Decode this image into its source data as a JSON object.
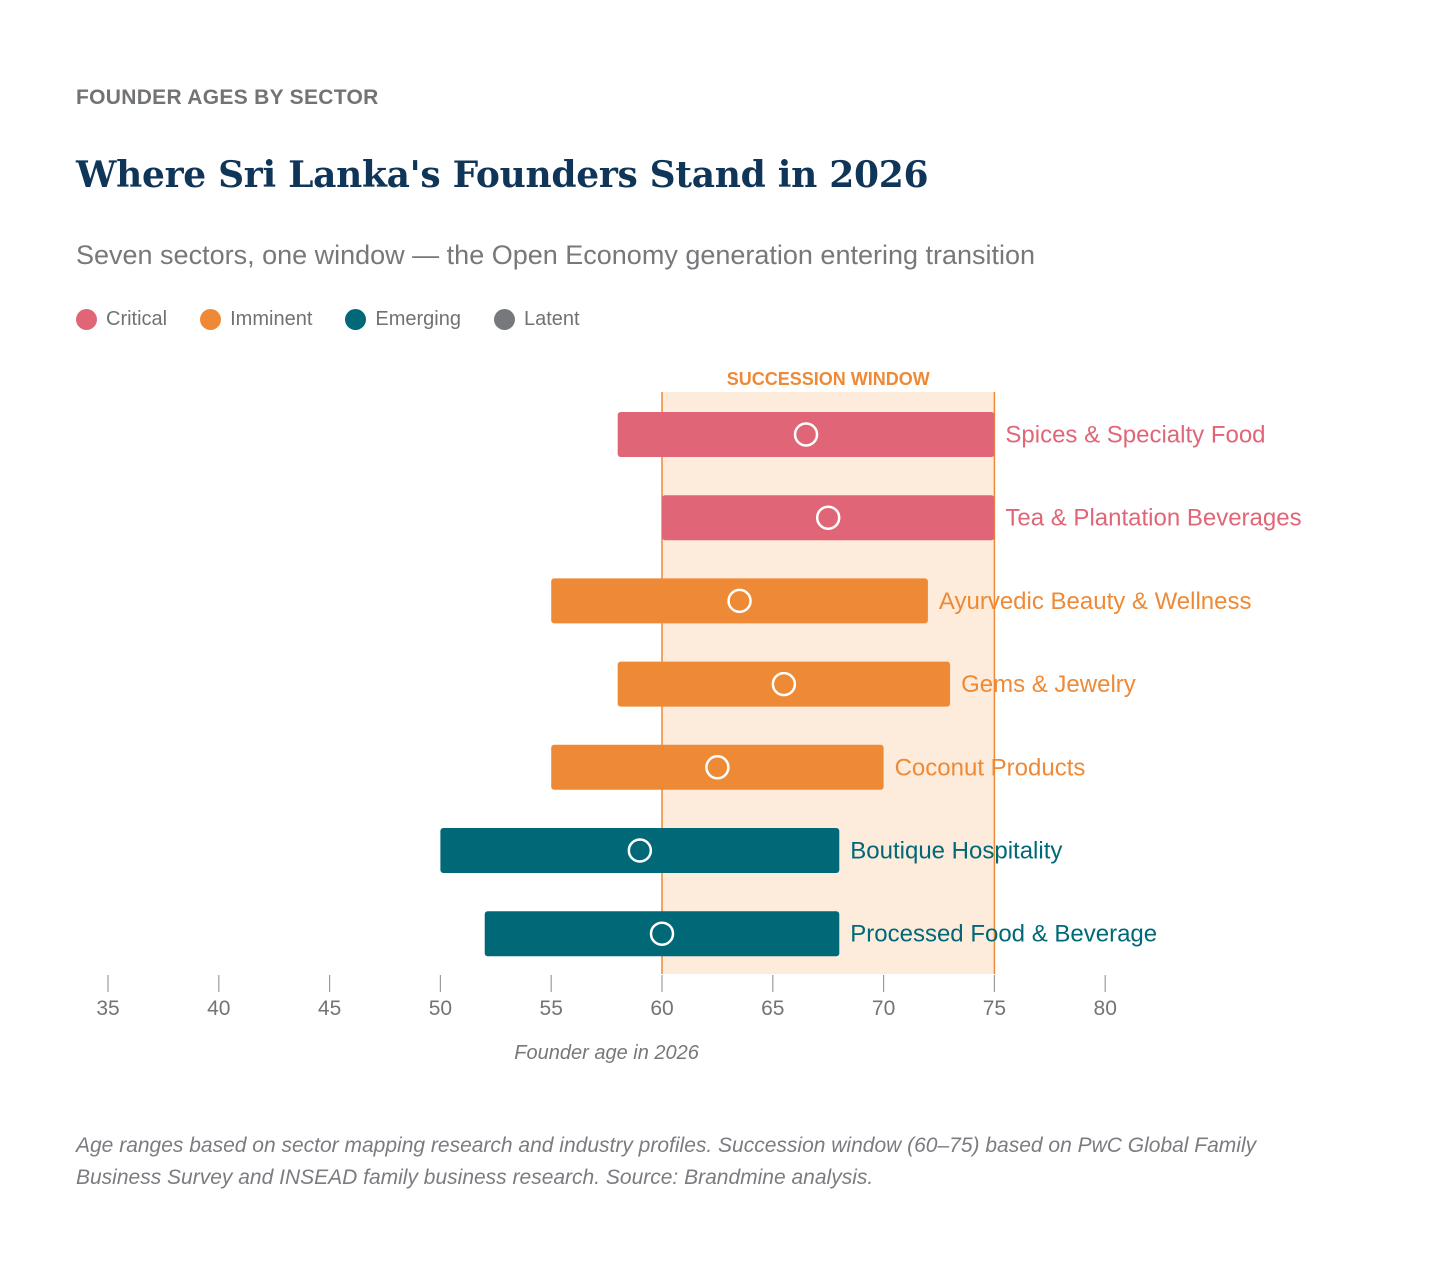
{
  "header": {
    "eyebrow": "FOUNDER AGES BY SECTOR",
    "title": "Where Sri Lanka's Founders Stand in 2026",
    "subtitle": "Seven sectors, one window — the Open Economy generation entering transition"
  },
  "legend": [
    {
      "label": "Critical",
      "color": "#e06677"
    },
    {
      "label": "Imminent",
      "color": "#ee8a35"
    },
    {
      "label": "Emerging",
      "color": "#006877"
    },
    {
      "label": "Latent",
      "color": "#76787b"
    }
  ],
  "chart_data": {
    "type": "range-bar",
    "xlabel": "Founder age in 2026",
    "xlim": [
      35,
      80
    ],
    "xticks": [
      35,
      40,
      45,
      50,
      55,
      60,
      65,
      70,
      75,
      80
    ],
    "window": {
      "label": "SUCCESSION WINDOW",
      "start": 60,
      "end": 75,
      "color": "#ee8a35"
    },
    "series": [
      {
        "label": "Spices & Specialty Food",
        "status": "Critical",
        "min": 58,
        "max": 75,
        "median": 66.5
      },
      {
        "label": "Tea & Plantation Beverages",
        "status": "Critical",
        "min": 60,
        "max": 75,
        "median": 67.5
      },
      {
        "label": "Ayurvedic Beauty & Wellness",
        "status": "Imminent",
        "min": 55,
        "max": 72,
        "median": 63.5
      },
      {
        "label": "Gems & Jewelry",
        "status": "Imminent",
        "min": 58,
        "max": 73,
        "median": 65.5
      },
      {
        "label": "Coconut Products",
        "status": "Imminent",
        "min": 55,
        "max": 70,
        "median": 62.5
      },
      {
        "label": "Boutique Hospitality",
        "status": "Emerging",
        "min": 50,
        "max": 68,
        "median": 59
      },
      {
        "label": "Processed Food & Beverage",
        "status": "Emerging",
        "min": 52,
        "max": 68,
        "median": 60
      }
    ],
    "colors": {
      "Critical": "#e06677",
      "Imminent": "#ee8a35",
      "Emerging": "#006877",
      "Latent": "#76787b"
    },
    "grid": false
  },
  "footnote": "Age ranges based on sector mapping research and industry profiles. Succession window (60–75) based on PwC Global Family Business Survey and INSEAD family business research. Source: Brandmine analysis."
}
